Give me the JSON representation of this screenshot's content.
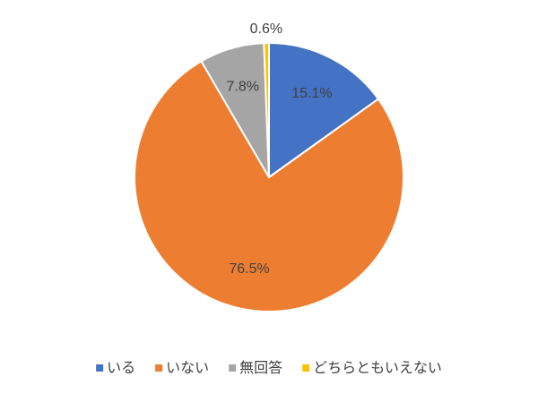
{
  "chart_data": {
    "type": "pie",
    "categories": [
      "いる",
      "いない",
      "無回答",
      "どちらともいえない"
    ],
    "values": [
      15.1,
      76.5,
      7.8,
      0.6
    ],
    "value_labels": [
      "15.1%",
      "76.5%",
      "7.8%",
      "0.6%"
    ],
    "colors": [
      "#4472c4",
      "#ed7d31",
      "#a5a5a5",
      "#ffc000"
    ],
    "legend": "bottom"
  }
}
